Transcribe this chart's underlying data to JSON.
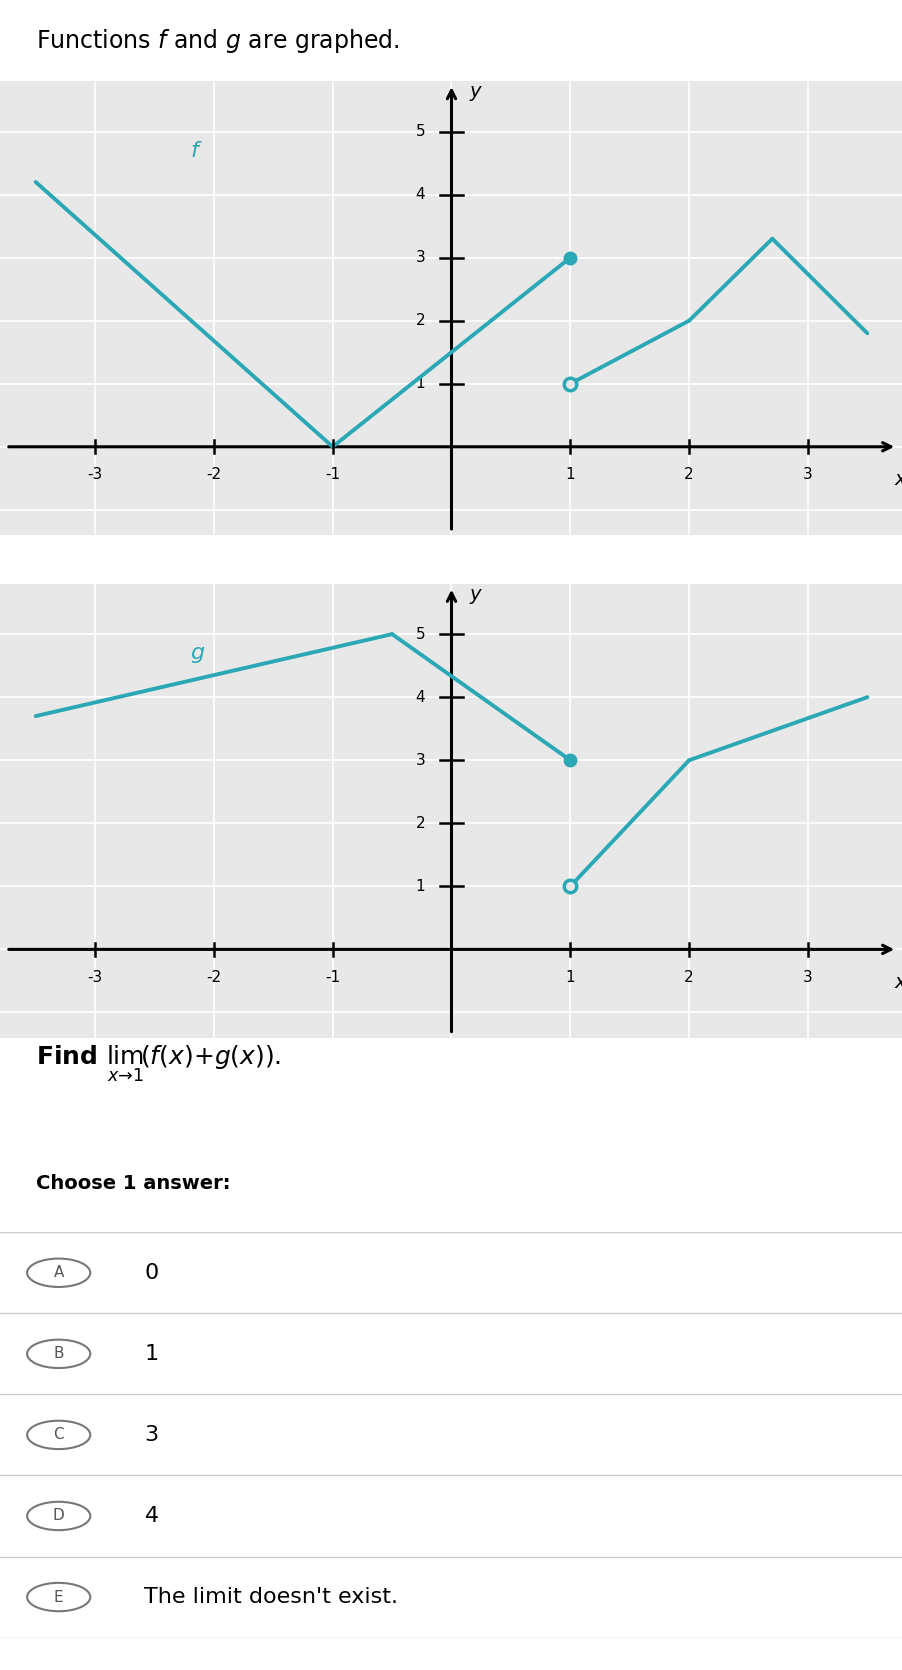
{
  "bg_color": "#ffffff",
  "plot_bg_color": "#e8e8e8",
  "line_color": "#2ba8b5",
  "title_text": "Functions $f$ and $g$ are graphed.",
  "choices_labels": [
    "A",
    "B",
    "C",
    "D",
    "E"
  ],
  "choices_text": [
    "0",
    "1",
    "3",
    "4",
    "The limit doesn't exist."
  ],
  "f_line_segments": [
    [
      [
        -3.5,
        4.2
      ],
      [
        -1,
        0
      ]
    ],
    [
      [
        -1,
        0
      ],
      [
        1,
        3
      ]
    ],
    [
      [
        1,
        1
      ],
      [
        2,
        2
      ]
    ],
    [
      [
        2,
        2
      ],
      [
        2.7,
        3.3
      ]
    ],
    [
      [
        2.7,
        3.3
      ],
      [
        3.5,
        1.8
      ]
    ]
  ],
  "f_filled_dot": [
    1,
    3
  ],
  "f_open_dot": [
    1,
    1
  ],
  "g_line_segments": [
    [
      [
        -3.5,
        3.7
      ],
      [
        -0.5,
        5.0
      ]
    ],
    [
      [
        -0.5,
        5.0
      ],
      [
        1,
        3
      ]
    ],
    [
      [
        1,
        1
      ],
      [
        2,
        3
      ]
    ],
    [
      [
        2,
        3
      ],
      [
        3.5,
        4.0
      ]
    ]
  ],
  "g_filled_dot": [
    1,
    3
  ],
  "g_open_dot": [
    1,
    1
  ],
  "xlim": [
    -3.8,
    3.8
  ],
  "ylim": [
    -1.4,
    5.8
  ],
  "xticks": [
    -3,
    -2,
    -1,
    1,
    2,
    3
  ],
  "yticks": [
    1,
    2,
    3,
    4,
    5
  ]
}
